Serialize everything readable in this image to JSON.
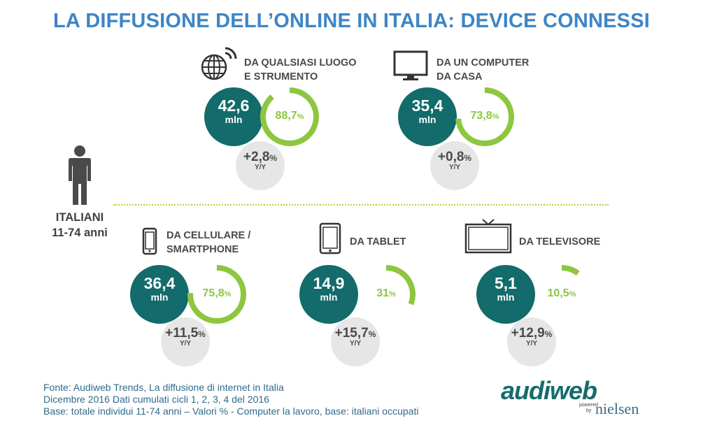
{
  "title": "LA DIFFUSIONE DELL’ONLINE IN ITALIA: DEVICE CONNESSI",
  "population": {
    "line1": "ITALIANI",
    "line2": "11-74 anni"
  },
  "chart_data": [
    {
      "type": "pie",
      "category_line1": "DA QUALSIASI LUOGO",
      "category_line2": "E STRUMENTO",
      "icon": "globe-wifi-icon",
      "users": "42,6",
      "users_unit": "mln",
      "percent": 88.7,
      "percent_label": "88,7",
      "yoy": "+2,8",
      "yoy_label": "Y/Y"
    },
    {
      "type": "pie",
      "category_line1": "DA UN COMPUTER",
      "category_line2": "DA CASA",
      "icon": "monitor-icon",
      "users": "35,4",
      "users_unit": "mln",
      "percent": 73.8,
      "percent_label": "73,8",
      "yoy": "+0,8",
      "yoy_label": "Y/Y"
    },
    {
      "type": "pie",
      "category_line1": "DA CELLULARE /",
      "category_line2": "SMARTPHONE",
      "icon": "smartphone-icon",
      "users": "36,4",
      "users_unit": "mln",
      "percent": 75.8,
      "percent_label": "75,8",
      "yoy": "+11,5",
      "yoy_label": "Y/Y"
    },
    {
      "type": "pie",
      "category_line1": "DA TABLET",
      "category_line2": "",
      "icon": "tablet-icon",
      "users": "14,9",
      "users_unit": "mln",
      "percent": 31,
      "percent_label": "31",
      "yoy": "+15,7",
      "yoy_label": "Y/Y"
    },
    {
      "type": "pie",
      "category_line1": "DA TELEVISORE",
      "category_line2": "",
      "icon": "tv-icon",
      "users": "5,1",
      "users_unit": "mln",
      "percent": 10.5,
      "percent_label": "10,5",
      "yoy": "+12,9",
      "yoy_label": "Y/Y"
    }
  ],
  "percent_sign": "%",
  "source": {
    "line1": "Fonte: Audiweb Trends, La diffusione di internet in Italia",
    "line2": "Dicembre 2016  Dati cumulati cicli 1, 2, 3, 4 del 2016",
    "line3": "Base: totale individui 11-74 anni – Valori % -  Computer la lavoro, base: italiani occupati"
  },
  "logo": {
    "brand": "audiweb",
    "powered": "powered",
    "by": "by",
    "partner": "nielsen"
  },
  "colors": {
    "title": "#3d85c6",
    "teal": "#136b6b",
    "green": "#8dc63f",
    "grey": "#e6e6e6"
  }
}
